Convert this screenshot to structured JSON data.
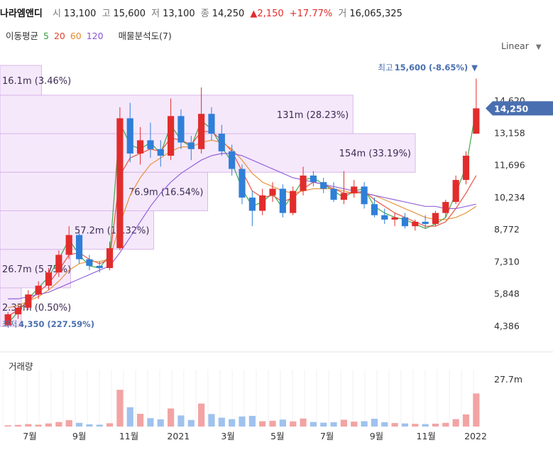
{
  "header": {
    "name": "나라엠앤디",
    "open_label": "시",
    "open": "13,100",
    "high_label": "고",
    "high": "15,600",
    "low_label": "저",
    "low": "13,100",
    "close_label": "종",
    "close": "14,250",
    "change_arrow": "▲",
    "change": "2,150",
    "change_pct": "+17.77%",
    "volume_label": "거",
    "volume": "16,065,325"
  },
  "indicators": {
    "ma_label": "이동평균",
    "ma5": "5",
    "ma20": "20",
    "ma60": "60",
    "ma120": "120",
    "volume_profile": "매물분석도(7)"
  },
  "scale": {
    "label": "Linear",
    "chevron": "▼"
  },
  "volume_panel": {
    "title": "거래량",
    "max_label": "27.7m"
  },
  "colors": {
    "up": "#e22c2c",
    "down": "#2f7fd8",
    "ma5": "#2e9f3a",
    "ma20": "#e2442c",
    "ma60": "#e58a2a",
    "ma120": "#8a55d6",
    "profile_fill": "#f5e8fb",
    "profile_stroke": "#d9b8e8",
    "current_tag": "#4a6fb0"
  },
  "chart_data": {
    "type": "candlestick",
    "title": "",
    "ylim": [
      4000,
      16200
    ],
    "y_ticks": [
      4386,
      5848,
      7310,
      8772,
      10234,
      11696,
      13158,
      14620
    ],
    "y_tick_labels": [
      "4,386",
      "5,848",
      "7,310",
      "8,772",
      "10,234",
      "11,696",
      "13,158",
      "14,620"
    ],
    "x_tick_labels": [
      "7월",
      "9월",
      "11월",
      "2021",
      "3월",
      "5월",
      "7월",
      "9월",
      "11월",
      "2022"
    ],
    "current_price": 14250,
    "current_price_label": "14,250",
    "high_note": {
      "label": "최고",
      "value": "15,600 (-8.65%)",
      "marker": "▼",
      "price": 15600
    },
    "low_note": {
      "label": "최저",
      "value": "4,350 (227.59%)",
      "price": 4350
    },
    "volume_profile": [
      {
        "price_low": 4350,
        "price_high": 6100,
        "volume": "2.33m",
        "pct": "0.50%",
        "label": "2.33m (0.50%)",
        "rel": 0.0
      },
      {
        "price_low": 6100,
        "price_high": 7850,
        "volume": "26.7m",
        "pct": "5.75%",
        "label": "26.7m (5.75%)",
        "rel": 0.17
      },
      {
        "price_low": 7850,
        "price_high": 9600,
        "volume": "57.2m",
        "pct": "12.32%",
        "label": "57.2m (12.32%)",
        "rel": 0.37
      },
      {
        "price_low": 9600,
        "price_high": 11350,
        "volume": "76.9m",
        "pct": "16.54%",
        "label": "76.9m (16.54%)",
        "rel": 0.5
      },
      {
        "price_low": 11350,
        "price_high": 13100,
        "volume": "154m",
        "pct": "33.19%",
        "label": "154m (33.19%)",
        "rel": 1.0
      },
      {
        "price_low": 13100,
        "price_high": 14850,
        "volume": "131m",
        "pct": "28.23%",
        "label": "131m (28.23%)",
        "rel": 0.85
      },
      {
        "price_low": 14850,
        "price_high": 16600,
        "volume": "16.1m",
        "pct": "3.46%",
        "label": "16.1m (3.46%)",
        "rel": 0.1
      }
    ],
    "series": [
      {
        "name": "5",
        "color": "#2e9f3a",
        "values": [
          4500,
          5000,
          5600,
          6100,
          6600,
          7400,
          8300,
          7600,
          7100,
          7000,
          7600,
          13600,
          12600,
          12400,
          12700,
          12200,
          13500,
          12800,
          12500,
          13700,
          13300,
          12500,
          11800,
          10600,
          9800,
          10000,
          10400,
          9700,
          10300,
          11000,
          11100,
          10800,
          10500,
          10200,
          10500,
          10600,
          9800,
          9500,
          9300,
          9200,
          9000,
          8800,
          9000,
          9300,
          10400,
          11600,
          14250
        ]
      },
      {
        "name": "20",
        "color": "#e2442c",
        "values": [
          4800,
          5100,
          5500,
          5900,
          6300,
          6900,
          7600,
          7700,
          7400,
          7200,
          7400,
          11200,
          12000,
          12200,
          12400,
          12300,
          12900,
          12800,
          12600,
          13200,
          13200,
          12800,
          12300,
          11400,
          10500,
          10200,
          10300,
          10000,
          10200,
          10600,
          10900,
          10800,
          10600,
          10400,
          10400,
          10500,
          10100,
          9800,
          9500,
          9300,
          9100,
          8900,
          8900,
          9100,
          9700,
          10400,
          11200
        ]
      },
      {
        "name": "60",
        "color": "#e58a2a",
        "values": [
          5200,
          5300,
          5500,
          5700,
          6000,
          6400,
          6900,
          7200,
          7300,
          7300,
          7400,
          9000,
          10300,
          11100,
          11700,
          12000,
          12300,
          12500,
          12500,
          12700,
          12800,
          12700,
          12400,
          11900,
          11300,
          10900,
          10700,
          10500,
          10400,
          10500,
          10600,
          10600,
          10600,
          10500,
          10400,
          10400,
          10300,
          10100,
          9900,
          9700,
          9500,
          9300,
          9200,
          9200,
          9300,
          9500,
          9800
        ]
      },
      {
        "name": "120",
        "color": "#8a55d6",
        "values": [
          5600,
          5600,
          5700,
          5800,
          5900,
          6100,
          6300,
          6500,
          6700,
          6900,
          7100,
          7700,
          8400,
          9100,
          9800,
          10400,
          10900,
          11300,
          11600,
          11900,
          12100,
          12200,
          12200,
          12100,
          11900,
          11700,
          11500,
          11300,
          11100,
          11000,
          10900,
          10800,
          10700,
          10600,
          10500,
          10400,
          10300,
          10200,
          10100,
          10000,
          9900,
          9800,
          9800,
          9700,
          9700,
          9800,
          9900
        ]
      }
    ],
    "ohlc": [
      [
        4400,
        5000,
        4350,
        4900
      ],
      [
        4900,
        5300,
        4700,
        5200
      ],
      [
        5200,
        6000,
        5100,
        5800
      ],
      [
        5800,
        6400,
        5600,
        6200
      ],
      [
        6200,
        7000,
        6000,
        6800
      ],
      [
        6800,
        7800,
        6600,
        7600
      ],
      [
        7600,
        8900,
        7400,
        8500
      ],
      [
        8500,
        8600,
        7200,
        7400
      ],
      [
        7400,
        7600,
        6900,
        7100
      ],
      [
        7100,
        7300,
        6800,
        7000
      ],
      [
        7000,
        8200,
        6900,
        7900
      ],
      [
        7900,
        14300,
        7800,
        13800
      ],
      [
        13800,
        14500,
        11800,
        12200
      ],
      [
        12200,
        13400,
        11700,
        12800
      ],
      [
        12800,
        13600,
        12000,
        12400
      ],
      [
        12400,
        12800,
        11600,
        12100
      ],
      [
        12100,
        14700,
        11900,
        13900
      ],
      [
        13900,
        14200,
        12400,
        12700
      ],
      [
        12700,
        13000,
        11900,
        12400
      ],
      [
        12400,
        15200,
        12200,
        14000
      ],
      [
        14000,
        14300,
        12800,
        13100
      ],
      [
        13100,
        13500,
        12100,
        12300
      ],
      [
        12300,
        12600,
        11200,
        11500
      ],
      [
        11500,
        11700,
        9900,
        10200
      ],
      [
        10200,
        10500,
        8900,
        9600
      ],
      [
        9600,
        10600,
        9400,
        10300
      ],
      [
        10300,
        10900,
        10000,
        10600
      ],
      [
        10600,
        10800,
        9300,
        9500
      ],
      [
        9500,
        10700,
        9400,
        10500
      ],
      [
        10500,
        11600,
        10300,
        11200
      ],
      [
        11200,
        11400,
        10700,
        10900
      ],
      [
        10900,
        11100,
        10400,
        10600
      ],
      [
        10600,
        10900,
        10000,
        10100
      ],
      [
        10100,
        11400,
        9900,
        10400
      ],
      [
        10400,
        11000,
        10200,
        10700
      ],
      [
        10700,
        10900,
        9700,
        9900
      ],
      [
        9900,
        10200,
        9300,
        9400
      ],
      [
        9400,
        9700,
        9000,
        9200
      ],
      [
        9200,
        9500,
        8900,
        9300
      ],
      [
        9300,
        9500,
        8800,
        8900
      ],
      [
        8900,
        9200,
        8700,
        9100
      ],
      [
        9100,
        9400,
        8800,
        9000
      ],
      [
        9000,
        9600,
        8900,
        9500
      ],
      [
        9500,
        10100,
        9300,
        10000
      ],
      [
        10000,
        11200,
        9900,
        11000
      ],
      [
        11000,
        12300,
        10800,
        12100
      ],
      [
        13100,
        15600,
        13100,
        14250
      ]
    ],
    "volume": {
      "max_label": "27.7m",
      "max": 27.7,
      "values": [
        0.6,
        0.8,
        1.2,
        0.9,
        1.5,
        2.2,
        3.1,
        1.8,
        1.1,
        0.9,
        1.6,
        17.9,
        9.4,
        6.2,
        4.1,
        3.5,
        8.8,
        5.4,
        3.2,
        11.2,
        6.1,
        4.3,
        3.6,
        4.9,
        5.2,
        2.6,
        2.8,
        3.4,
        2.5,
        3.9,
        2.2,
        1.9,
        2.1,
        3.3,
        2.4,
        2.6,
        3.8,
        2.1,
        1.7,
        1.5,
        1.3,
        1.2,
        1.4,
        1.8,
        3.6,
        5.9,
        16.1
      ]
    }
  }
}
